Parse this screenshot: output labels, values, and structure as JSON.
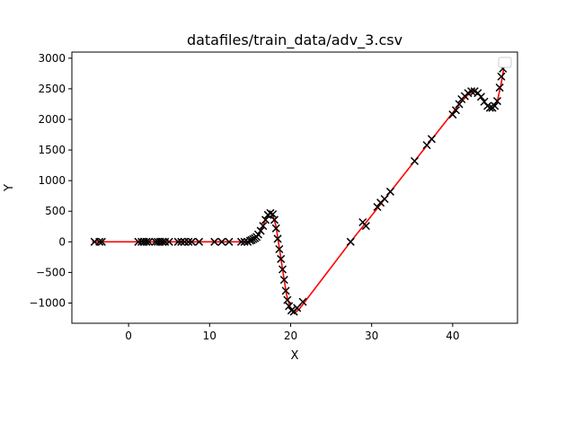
{
  "chart_data": {
    "type": "scatter",
    "title": "datafiles/train_data/adv_3.csv",
    "xlabel": "X",
    "ylabel": "Y",
    "xlim": [
      -7,
      48
    ],
    "ylim": [
      -1330,
      3100
    ],
    "x_ticks": [
      0,
      10,
      20,
      30,
      40
    ],
    "y_ticks": [
      -1000,
      -500,
      0,
      500,
      1000,
      1500,
      2000,
      2500,
      3000
    ],
    "grid": false,
    "legend": "upper right (empty)",
    "colors": {
      "line": "#ff0000",
      "markers": "#000000"
    },
    "series": [
      {
        "kind": "scatter-x-markers",
        "points": [
          [
            -4.2,
            0
          ],
          [
            -3.6,
            0
          ],
          [
            -3.3,
            0
          ],
          [
            1.2,
            0
          ],
          [
            1.6,
            0
          ],
          [
            1.9,
            0
          ],
          [
            2.2,
            0
          ],
          [
            2.5,
            0
          ],
          [
            3.3,
            0
          ],
          [
            3.6,
            0
          ],
          [
            3.9,
            0
          ],
          [
            4.2,
            0
          ],
          [
            4.5,
            0
          ],
          [
            5.0,
            0
          ],
          [
            6.1,
            0
          ],
          [
            6.5,
            0
          ],
          [
            6.9,
            0
          ],
          [
            7.4,
            0
          ],
          [
            7.8,
            0
          ],
          [
            8.7,
            0
          ],
          [
            10.6,
            0
          ],
          [
            11.5,
            0
          ],
          [
            12.4,
            0
          ],
          [
            13.9,
            0
          ],
          [
            14.3,
            0
          ],
          [
            14.7,
            0
          ],
          [
            15.0,
            20
          ],
          [
            15.2,
            30
          ],
          [
            15.4,
            45
          ],
          [
            15.6,
            60
          ],
          [
            15.8,
            80
          ],
          [
            16.0,
            120
          ],
          [
            16.3,
            180
          ],
          [
            16.6,
            260
          ],
          [
            16.9,
            360
          ],
          [
            17.2,
            440
          ],
          [
            17.5,
            470
          ],
          [
            17.8,
            450
          ],
          [
            18.0,
            360
          ],
          [
            18.2,
            220
          ],
          [
            18.4,
            50
          ],
          [
            18.6,
            -120
          ],
          [
            18.8,
            -280
          ],
          [
            19.0,
            -450
          ],
          [
            19.2,
            -620
          ],
          [
            19.4,
            -800
          ],
          [
            19.6,
            -950
          ],
          [
            19.8,
            -1050
          ],
          [
            20.1,
            -1120
          ],
          [
            20.4,
            -1140
          ],
          [
            20.8,
            -1080
          ],
          [
            21.5,
            -980
          ],
          [
            27.4,
            0
          ],
          [
            28.9,
            320
          ],
          [
            29.3,
            260
          ],
          [
            30.7,
            570
          ],
          [
            31.1,
            640
          ],
          [
            31.6,
            700
          ],
          [
            32.3,
            820
          ],
          [
            35.3,
            1320
          ],
          [
            36.8,
            1580
          ],
          [
            37.4,
            1680
          ],
          [
            40.0,
            2080
          ],
          [
            40.4,
            2150
          ],
          [
            40.8,
            2250
          ],
          [
            41.1,
            2330
          ],
          [
            41.5,
            2380
          ],
          [
            41.9,
            2430
          ],
          [
            42.3,
            2460
          ],
          [
            42.7,
            2460
          ],
          [
            43.1,
            2430
          ],
          [
            43.5,
            2370
          ],
          [
            43.9,
            2290
          ],
          [
            44.3,
            2220
          ],
          [
            44.6,
            2190
          ],
          [
            44.9,
            2190
          ],
          [
            45.2,
            2220
          ],
          [
            45.5,
            2300
          ],
          [
            45.8,
            2520
          ],
          [
            46.0,
            2700
          ],
          [
            46.2,
            2830
          ]
        ]
      },
      {
        "kind": "fitted-line",
        "points": [
          [
            -4.5,
            0
          ],
          [
            14.5,
            0
          ],
          [
            15.0,
            10
          ],
          [
            15.5,
            40
          ],
          [
            16.0,
            110
          ],
          [
            16.5,
            230
          ],
          [
            17.0,
            400
          ],
          [
            17.5,
            470
          ],
          [
            17.8,
            440
          ],
          [
            18.2,
            250
          ],
          [
            18.6,
            -100
          ],
          [
            19.0,
            -450
          ],
          [
            19.5,
            -870
          ],
          [
            20.0,
            -1100
          ],
          [
            20.5,
            -1160
          ],
          [
            21.0,
            -1110
          ],
          [
            27.4,
            0
          ],
          [
            30.0,
            430
          ],
          [
            35.0,
            1270
          ],
          [
            40.0,
            2110
          ],
          [
            41.0,
            2280
          ],
          [
            42.0,
            2420
          ],
          [
            42.5,
            2460
          ],
          [
            43.0,
            2440
          ],
          [
            43.5,
            2370
          ],
          [
            44.0,
            2270
          ],
          [
            44.5,
            2200
          ],
          [
            45.0,
            2190
          ],
          [
            45.5,
            2290
          ],
          [
            46.0,
            2600
          ],
          [
            46.3,
            2830
          ]
        ]
      }
    ]
  }
}
